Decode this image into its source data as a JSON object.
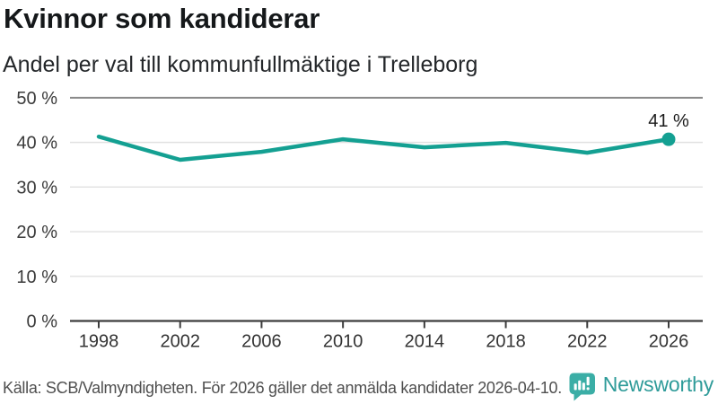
{
  "header": {
    "title": "Kvinnor som kandiderar",
    "subtitle": "Andel per val till kommunfullmäktige i Trelleborg"
  },
  "chart_data": {
    "type": "line",
    "title": "Kvinnor som kandiderar",
    "subtitle": "Andel per val till kommunfullmäktige i Trelleborg",
    "categories": [
      "1998",
      "2002",
      "2006",
      "2010",
      "2014",
      "2018",
      "2022",
      "2026"
    ],
    "values": [
      41.3,
      36.1,
      37.9,
      40.7,
      38.9,
      39.9,
      37.7,
      40.7
    ],
    "end_point_label": "41 %",
    "xlabel": "",
    "ylabel": "",
    "ylim": [
      0,
      50
    ],
    "yticks": [
      0,
      10,
      20,
      30,
      40,
      50
    ],
    "ytick_suffix": " %",
    "grid": true,
    "legend": "none",
    "line_color": "#14a092"
  },
  "footer": {
    "source": "Källa: SCB/Valmyndigheten. För 2026 gäller det anmälda kandidater 2026-04-10.",
    "brand": "Newsworthy"
  },
  "colors": {
    "accent_teal": "#14a092",
    "brand_teal": "#3baea6",
    "brand_text_teal": "#2e9b99",
    "axis_dark": "#3d3d3d",
    "grid_light": "#e0e0e0",
    "grid_top": "#8a8a8a"
  },
  "icons": {
    "logo": "bar-chart-speech-bubble-icon"
  }
}
